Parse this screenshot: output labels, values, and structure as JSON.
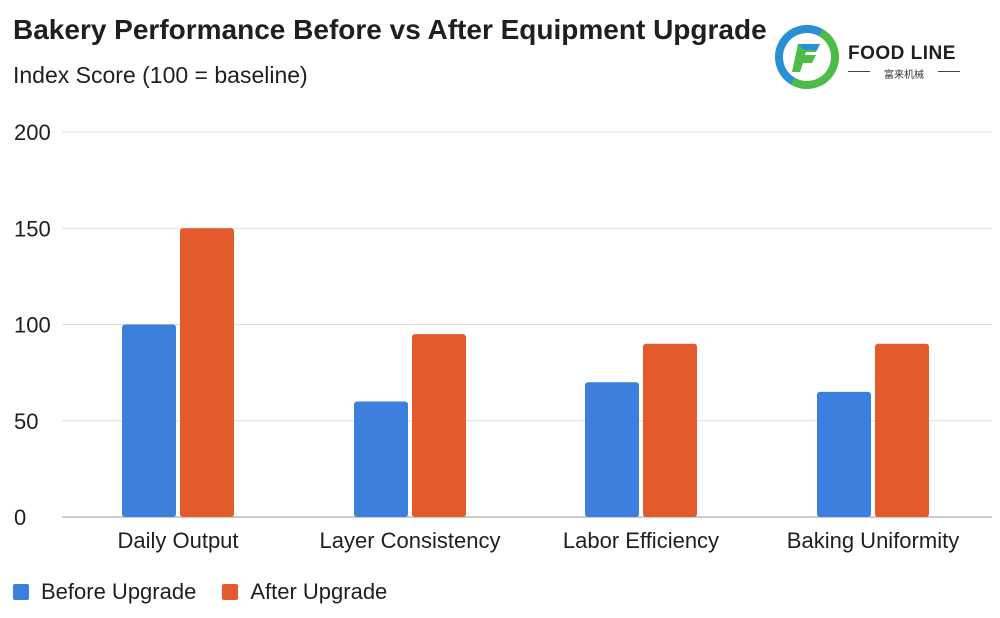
{
  "title": "Bakery Performance Before vs After Equipment Upgrade",
  "subtitle": "Index Score (100 = baseline)",
  "logo": {
    "text": "FOOD LINE",
    "subtext": "富来机械",
    "icon": "food-line-logo-icon",
    "colors": [
      "#2b8fd6",
      "#4cbb47"
    ]
  },
  "colors": {
    "before": "#3d7fdc",
    "after": "#e35a2c",
    "grid": "#dddddd",
    "axis": "#bbbbbb"
  },
  "chart_data": {
    "type": "bar",
    "title": "Bakery Performance Before vs After Equipment Upgrade",
    "subtitle": "Index Score (100 = baseline)",
    "xlabel": "",
    "ylabel": "",
    "categories": [
      "Daily Output",
      "Layer Consistency",
      "Labor Efficiency",
      "Baking Uniformity"
    ],
    "series": [
      {
        "name": "Before Upgrade",
        "values": [
          100,
          60,
          70,
          65
        ]
      },
      {
        "name": "After Upgrade",
        "values": [
          150,
          95,
          90,
          90
        ]
      }
    ],
    "ylim": [
      0,
      200
    ],
    "yticks": [
      "0",
      "50",
      "100",
      "150",
      "200"
    ],
    "grid": true,
    "legend_position": "bottom-left"
  }
}
